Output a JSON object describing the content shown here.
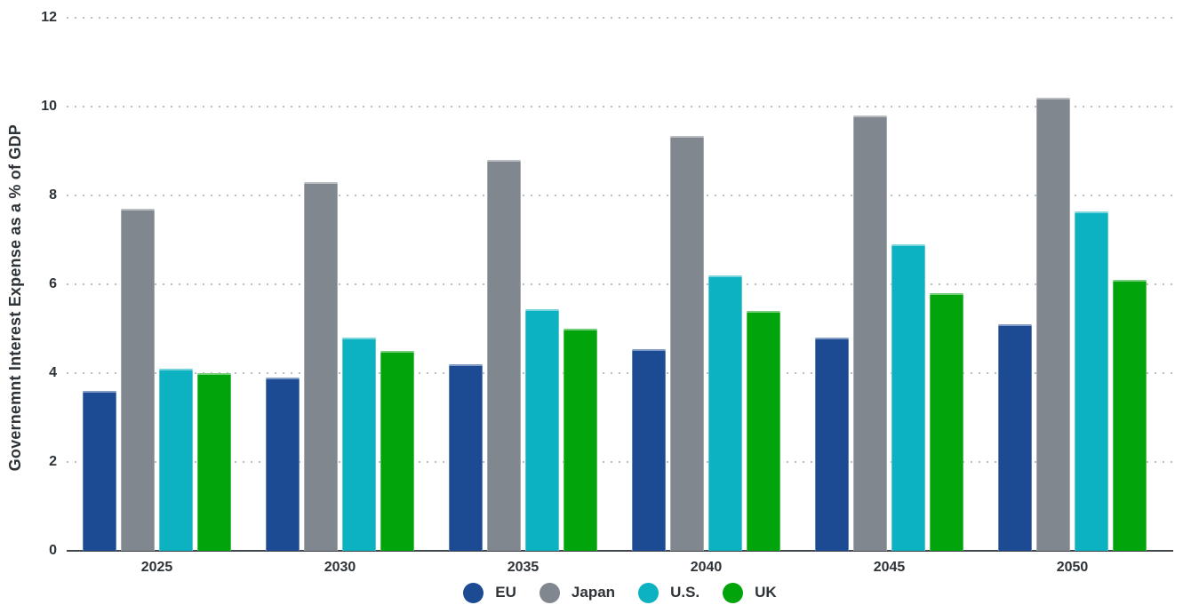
{
  "chart_data": {
    "type": "bar",
    "title": "",
    "xlabel": "",
    "ylabel": "Governemnt Interest Expense as a % of GDP",
    "ylim": [
      0,
      12
    ],
    "yticks": [
      0,
      2,
      4,
      6,
      8,
      10,
      12
    ],
    "grid": "horizontal-dotted",
    "grid_color": "#b9bec3",
    "axis_line_color": "#42474d",
    "text_color": "#2e3338",
    "legend_position": "bottom-center",
    "legend_marker": "circle",
    "categories": [
      "2025",
      "2030",
      "2035",
      "2040",
      "2045",
      "2050"
    ],
    "series": [
      {
        "name": "EU",
        "color": "#1c4b94",
        "values": [
          3.6,
          3.9,
          4.2,
          4.55,
          4.8,
          5.1
        ]
      },
      {
        "name": "Japan",
        "color": "#80878e",
        "values": [
          7.7,
          8.3,
          8.8,
          9.35,
          9.8,
          10.2
        ]
      },
      {
        "name": "U.S.",
        "color": "#0cb1c2",
        "values": [
          4.1,
          4.8,
          5.45,
          6.2,
          6.9,
          7.65
        ]
      },
      {
        "name": "UK",
        "color": "#02a40c",
        "values": [
          4.0,
          4.5,
          5.0,
          5.4,
          5.8,
          6.1
        ]
      }
    ]
  }
}
